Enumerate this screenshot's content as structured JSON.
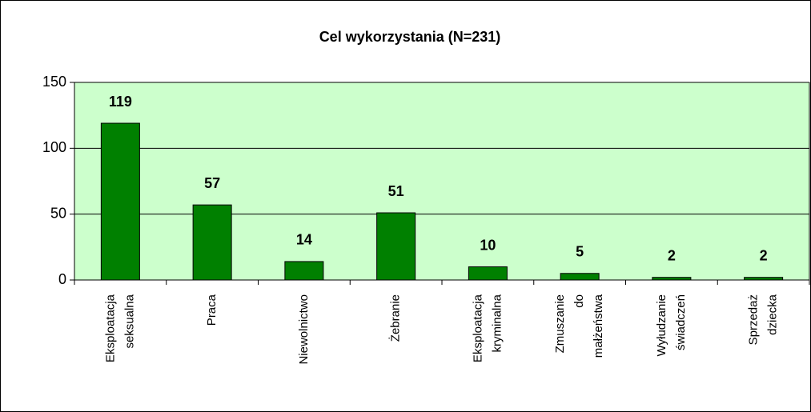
{
  "chart_data": {
    "type": "bar",
    "title": "Cel wykorzystania (N=231)",
    "categories": [
      [
        "Eksploatacja",
        "seksualna"
      ],
      [
        "Praca"
      ],
      [
        "Niewolnictwo"
      ],
      [
        "Żebranie"
      ],
      [
        "Eksploatacja",
        "kryminalna"
      ],
      [
        "Zmuszanie",
        "do",
        "małżeństwa"
      ],
      [
        "Wyłudzanie",
        "świadczeń"
      ],
      [
        "Sprzedaż",
        "dziecka"
      ]
    ],
    "values": [
      119,
      57,
      14,
      51,
      10,
      5,
      2,
      2
    ],
    "color": "#008000",
    "ylim": [
      0,
      150
    ],
    "yticks": [
      0,
      50,
      100,
      150
    ],
    "grid": true
  }
}
